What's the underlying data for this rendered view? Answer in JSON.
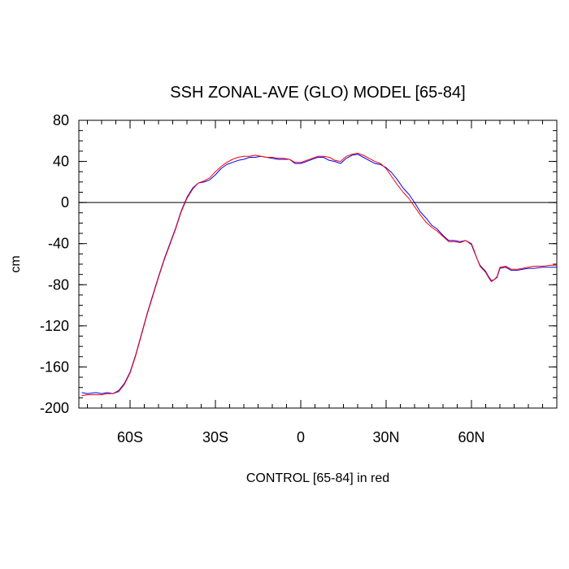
{
  "chart_data": {
    "type": "line",
    "title": "SSH ZONAL-AVE (GLO) MODEL [65-84]",
    "xlabel": "CONTROL [65-84] in red",
    "ylabel": "cm",
    "xlim": [
      -78,
      90
    ],
    "ylim": [
      -200,
      80
    ],
    "x_ticks": [
      {
        "value": -60,
        "label": "60S"
      },
      {
        "value": -30,
        "label": "30S"
      },
      {
        "value": 0,
        "label": "0"
      },
      {
        "value": 30,
        "label": "30N"
      },
      {
        "value": 60,
        "label": "60N"
      }
    ],
    "y_ticks": [
      {
        "value": 80,
        "label": "80"
      },
      {
        "value": 40,
        "label": "40"
      },
      {
        "value": 0,
        "label": "0"
      },
      {
        "value": -40,
        "label": "-40"
      },
      {
        "value": -80,
        "label": "-80"
      },
      {
        "value": -120,
        "label": "-120"
      },
      {
        "value": -160,
        "label": "-160"
      },
      {
        "value": -200,
        "label": "-200"
      }
    ],
    "reference_line": 0,
    "series": [
      {
        "color": "#0000ff",
        "x": [
          -77,
          -75,
          -72,
          -70,
          -68,
          -66,
          -64,
          -62,
          -60,
          -58,
          -56,
          -54,
          -52,
          -50,
          -48,
          -46,
          -44,
          -42,
          -40,
          -38,
          -36,
          -34,
          -32,
          -30,
          -28,
          -26,
          -24,
          -22,
          -20,
          -18,
          -16,
          -14,
          -12,
          -10,
          -8,
          -6,
          -4,
          -2,
          0,
          2,
          4,
          6,
          8,
          10,
          12,
          14,
          16,
          18,
          20,
          22,
          24,
          26,
          28,
          30,
          32,
          34,
          36,
          38,
          40,
          42,
          44,
          46,
          48,
          50,
          52,
          54,
          56,
          58,
          60,
          61,
          62,
          63,
          64,
          65,
          66,
          67,
          68,
          69,
          70,
          72,
          74,
          76,
          78,
          80,
          82,
          85,
          88,
          90
        ],
        "values": [
          -185,
          -186,
          -185,
          -186,
          -185,
          -186,
          -183,
          -176,
          -165,
          -148,
          -128,
          -108,
          -90,
          -72,
          -55,
          -40,
          -25,
          -8,
          5,
          14,
          19,
          20,
          22,
          27,
          33,
          37,
          39,
          41,
          42,
          44,
          44,
          45,
          44,
          43,
          42,
          42,
          42,
          38,
          38,
          40,
          42,
          44,
          44,
          41,
          40,
          38,
          43,
          46,
          47,
          44,
          41,
          38,
          37,
          34,
          29,
          22,
          14,
          8,
          0,
          -9,
          -15,
          -22,
          -26,
          -32,
          -37,
          -37,
          -38,
          -37,
          -41,
          -48,
          -55,
          -61,
          -64,
          -67,
          -72,
          -76,
          -75,
          -73,
          -64,
          -63,
          -66,
          -66,
          -65,
          -64,
          -64,
          -63,
          -63,
          -63
        ]
      },
      {
        "color": "#ff0000",
        "x": [
          -77,
          -75,
          -72,
          -70,
          -68,
          -66,
          -64,
          -62,
          -60,
          -58,
          -56,
          -54,
          -52,
          -50,
          -48,
          -46,
          -44,
          -42,
          -40,
          -38,
          -36,
          -34,
          -32,
          -30,
          -28,
          -26,
          -24,
          -22,
          -20,
          -18,
          -16,
          -14,
          -12,
          -10,
          -8,
          -6,
          -4,
          -2,
          0,
          2,
          4,
          6,
          8,
          10,
          12,
          14,
          16,
          18,
          20,
          22,
          24,
          26,
          28,
          30,
          32,
          34,
          36,
          38,
          40,
          42,
          44,
          46,
          48,
          50,
          52,
          54,
          56,
          58,
          60,
          61,
          62,
          63,
          64,
          65,
          66,
          67,
          68,
          69,
          70,
          72,
          74,
          76,
          78,
          80,
          82,
          85,
          88,
          90
        ],
        "values": [
          -188,
          -187,
          -187,
          -187,
          -186,
          -186,
          -184,
          -177,
          -166,
          -149,
          -129,
          -109,
          -91,
          -73,
          -56,
          -41,
          -26,
          -9,
          4,
          13,
          19,
          21,
          24,
          30,
          35,
          39,
          42,
          44,
          45,
          45,
          46,
          45,
          44,
          44,
          43,
          43,
          42,
          39,
          39,
          41,
          43,
          45,
          45,
          44,
          41,
          40,
          45,
          47,
          48,
          46,
          43,
          40,
          38,
          33,
          25,
          17,
          10,
          4,
          -4,
          -12,
          -19,
          -24,
          -28,
          -33,
          -38,
          -38,
          -39,
          -37,
          -40,
          -47,
          -55,
          -62,
          -65,
          -68,
          -73,
          -77,
          -75,
          -72,
          -63,
          -62,
          -65,
          -65,
          -64,
          -63,
          -62,
          -62,
          -61,
          -61
        ]
      }
    ]
  }
}
